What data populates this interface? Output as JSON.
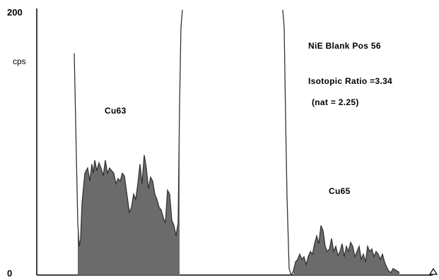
{
  "chart_data": {
    "type": "area",
    "title": "",
    "xlabel": "",
    "ylabel": "cps",
    "ylim": [
      0,
      200
    ],
    "y_ticks": [
      "200",
      "0"
    ],
    "y_tick_values": [
      200,
      0
    ],
    "grid": false,
    "legend": "none",
    "colors": {
      "fill": "#6b6b6b",
      "line": "#333333",
      "axis": "#000000"
    },
    "annotations": {
      "sample": "NiE Blank  Pos 56",
      "ratio": "Isotopic Ratio =3.34",
      "natural": "(nat = 2.25)"
    },
    "series": [
      {
        "name": "Cu63",
        "values": [
          [
            105,
            170
          ],
          [
            110,
            40
          ],
          [
            112,
            22
          ],
          [
            114,
            28
          ],
          [
            116,
            55
          ],
          [
            120,
            78
          ],
          [
            124,
            82
          ],
          [
            127,
            72
          ],
          [
            130,
            85
          ],
          [
            132,
            78
          ],
          [
            134,
            88
          ],
          [
            137,
            80
          ],
          [
            140,
            86
          ],
          [
            143,
            82
          ],
          [
            146,
            76
          ],
          [
            149,
            88
          ],
          [
            152,
            78
          ],
          [
            155,
            82
          ],
          [
            158,
            80
          ],
          [
            161,
            78
          ],
          [
            164,
            70
          ],
          [
            167,
            74
          ],
          [
            170,
            72
          ],
          [
            173,
            78
          ],
          [
            176,
            76
          ],
          [
            180,
            60
          ],
          [
            183,
            48
          ],
          [
            186,
            52
          ],
          [
            189,
            62
          ],
          [
            192,
            58
          ],
          [
            195,
            70
          ],
          [
            198,
            85
          ],
          [
            201,
            70
          ],
          [
            204,
            92
          ],
          [
            207,
            82
          ],
          [
            210,
            66
          ],
          [
            213,
            75
          ],
          [
            216,
            72
          ],
          [
            219,
            62
          ],
          [
            222,
            58
          ],
          [
            225,
            52
          ],
          [
            228,
            50
          ],
          [
            231,
            44
          ],
          [
            234,
            40
          ],
          [
            237,
            65
          ],
          [
            240,
            62
          ],
          [
            243,
            42
          ],
          [
            246,
            38
          ],
          [
            249,
            30
          ],
          [
            252,
            40
          ],
          [
            254,
            130
          ],
          [
            256,
            190
          ],
          [
            258,
            215
          ]
        ]
      },
      {
        "name": "Cu65",
        "values": [
          [
            400,
            215
          ],
          [
            402,
            190
          ],
          [
            404,
            120
          ],
          [
            406,
            60
          ],
          [
            409,
            5
          ],
          [
            412,
            0
          ],
          [
            415,
            3
          ],
          [
            418,
            10
          ],
          [
            421,
            12
          ],
          [
            424,
            16
          ],
          [
            427,
            12
          ],
          [
            430,
            14
          ],
          [
            433,
            8
          ],
          [
            436,
            14
          ],
          [
            439,
            18
          ],
          [
            442,
            16
          ],
          [
            445,
            24
          ],
          [
            448,
            30
          ],
          [
            451,
            24
          ],
          [
            454,
            38
          ],
          [
            457,
            34
          ],
          [
            460,
            22
          ],
          [
            463,
            18
          ],
          [
            466,
            20
          ],
          [
            469,
            28
          ],
          [
            472,
            18
          ],
          [
            475,
            22
          ],
          [
            478,
            15
          ],
          [
            481,
            18
          ],
          [
            484,
            24
          ],
          [
            487,
            14
          ],
          [
            490,
            22
          ],
          [
            493,
            18
          ],
          [
            496,
            25
          ],
          [
            499,
            22
          ],
          [
            502,
            14
          ],
          [
            505,
            18
          ],
          [
            508,
            22
          ],
          [
            511,
            12
          ],
          [
            514,
            16
          ],
          [
            517,
            10
          ],
          [
            520,
            22
          ],
          [
            523,
            18
          ],
          [
            526,
            20
          ],
          [
            529,
            14
          ],
          [
            532,
            18
          ],
          [
            535,
            16
          ],
          [
            538,
            12
          ],
          [
            541,
            16
          ],
          [
            544,
            10
          ],
          [
            547,
            6
          ],
          [
            550,
            3
          ],
          [
            553,
            2
          ],
          [
            556,
            5
          ],
          [
            559,
            4
          ],
          [
            562,
            3
          ],
          [
            565,
            2
          ]
        ]
      }
    ]
  }
}
